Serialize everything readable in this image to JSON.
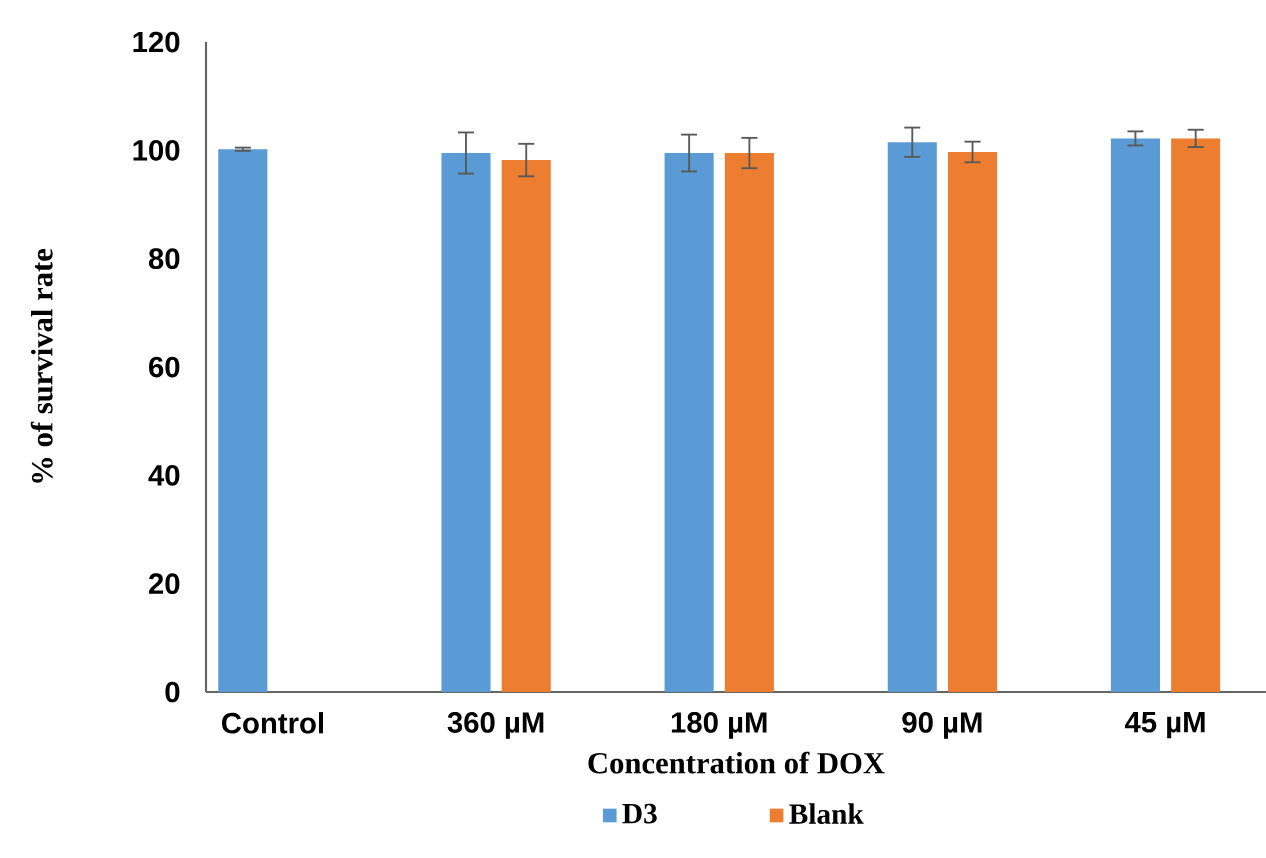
{
  "chart_data": {
    "type": "bar",
    "xlabel": "Concentration of DOX",
    "ylabel": "% of survival rate",
    "categories": [
      "Control",
      "360 µM",
      "180 µM",
      "90 µM",
      "45 µM"
    ],
    "series": [
      {
        "name": "D3",
        "color": "#5b9bd5",
        "values": [
          100.2,
          99.5,
          99.5,
          101.5,
          102.2
        ],
        "errors": [
          0.3,
          3.8,
          3.4,
          2.7,
          1.3
        ]
      },
      {
        "name": "Blank",
        "color": "#ed7d31",
        "values": [
          null,
          98.2,
          99.5,
          99.7,
          102.2
        ],
        "errors": [
          null,
          3.0,
          2.8,
          1.9,
          1.6
        ]
      }
    ],
    "ylim": [
      0,
      120
    ],
    "yticks": [
      0,
      20,
      40,
      60,
      80,
      100,
      120
    ],
    "grid": false,
    "legend": "bottom"
  }
}
